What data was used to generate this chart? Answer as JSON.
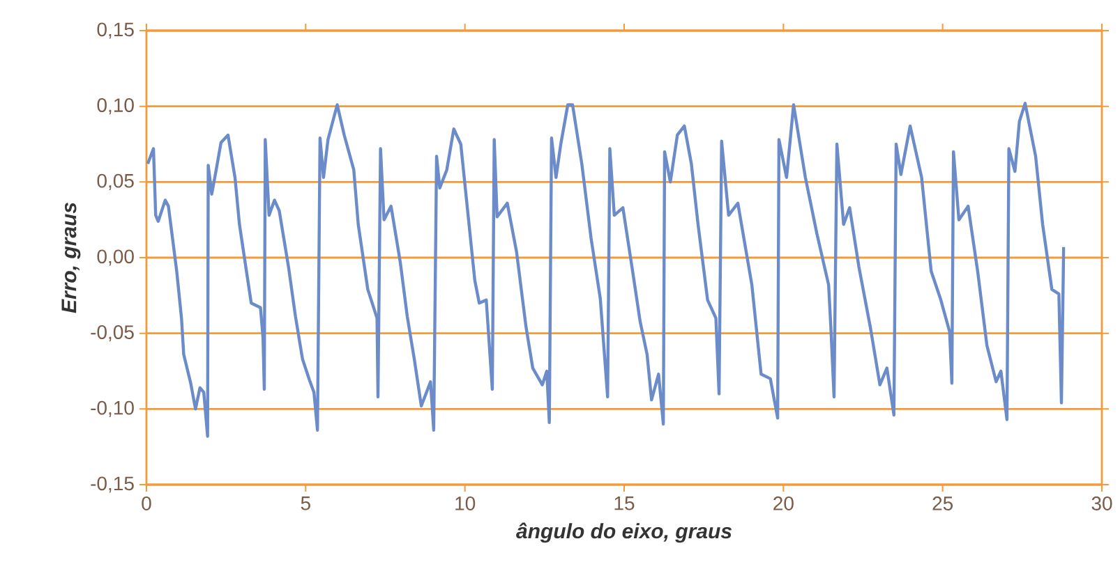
{
  "chart_data": {
    "type": "line",
    "xlabel": "ângulo do eixo, graus",
    "ylabel": "Erro, graus",
    "color": "#6b8cc9",
    "grid": "y",
    "marker": "none",
    "line_style": "solid",
    "xlim": [
      0,
      30
    ],
    "ylim": [
      -0.15,
      0.15
    ],
    "xticks": [
      0,
      5,
      10,
      15,
      20,
      25,
      30
    ],
    "yticks": [
      {
        "value": -0.15,
        "label": "-0,15"
      },
      {
        "value": -0.1,
        "label": "-0,10"
      },
      {
        "value": -0.05,
        "label": "-0,05"
      },
      {
        "value": 0,
        "label": "0,00"
      },
      {
        "value": 0.05,
        "label": "0,05"
      },
      {
        "value": 0.1,
        "label": "0,10"
      },
      {
        "value": 0.15,
        "label": "0,15"
      }
    ],
    "x": [
      0.04,
      0.22,
      0.29,
      0.37,
      0.59,
      0.69,
      0.95,
      1.1,
      1.17,
      1.39,
      1.54,
      1.68,
      1.8,
      1.92,
      1.94,
      2.05,
      2.19,
      2.34,
      2.56,
      2.78,
      2.92,
      3.14,
      3.29,
      3.58,
      3.66,
      3.7,
      3.73,
      3.85,
      4.02,
      4.17,
      4.46,
      4.68,
      4.9,
      5.12,
      5.26,
      5.37,
      5.45,
      5.56,
      5.7,
      5.99,
      6.21,
      6.51,
      6.65,
      6.95,
      7.24,
      7.27,
      7.35,
      7.46,
      7.68,
      7.97,
      8.19,
      8.41,
      8.63,
      8.92,
      9.02,
      9.11,
      9.21,
      9.43,
      9.65,
      9.87,
      10.31,
      10.45,
      10.67,
      10.86,
      10.92,
      11.01,
      11.33,
      11.62,
      11.92,
      12.13,
      12.43,
      12.57,
      12.65,
      12.72,
      12.86,
      13.01,
      13.23,
      13.38,
      13.67,
      13.96,
      14.25,
      14.48,
      14.55,
      14.69,
      14.96,
      15.28,
      15.5,
      15.72,
      15.86,
      16.08,
      16.23,
      16.27,
      16.45,
      16.67,
      16.89,
      17.11,
      17.32,
      17.62,
      17.88,
      17.98,
      18.06,
      18.28,
      18.57,
      19.01,
      19.3,
      19.59,
      19.82,
      19.86,
      20.1,
      20.32,
      20.69,
      21.05,
      21.42,
      21.49,
      21.59,
      21.68,
      21.89,
      22.08,
      22.37,
      22.73,
      23.03,
      23.25,
      23.47,
      23.54,
      23.69,
      23.98,
      24.34,
      24.64,
      24.93,
      25.22,
      25.29,
      25.34,
      25.51,
      25.8,
      26.1,
      26.39,
      26.68,
      26.83,
      27.02,
      27.08,
      27.27,
      27.41,
      27.59,
      27.92,
      28.14,
      28.43,
      28.65,
      28.73,
      28.8
    ],
    "values": [
      0.062,
      0.072,
      0.028,
      0.024,
      0.038,
      0.034,
      -0.009,
      -0.04,
      -0.064,
      -0.083,
      -0.1,
      -0.086,
      -0.089,
      -0.118,
      0.061,
      0.042,
      0.058,
      0.076,
      0.081,
      0.053,
      0.022,
      -0.009,
      -0.03,
      -0.033,
      -0.053,
      -0.087,
      0.078,
      0.028,
      0.038,
      0.031,
      -0.006,
      -0.039,
      -0.067,
      -0.081,
      -0.089,
      -0.114,
      0.079,
      0.053,
      0.078,
      0.101,
      0.081,
      0.058,
      0.022,
      -0.021,
      -0.04,
      -0.092,
      0.072,
      0.025,
      0.034,
      -0.003,
      -0.039,
      -0.067,
      -0.098,
      -0.082,
      -0.114,
      0.067,
      0.046,
      0.058,
      0.085,
      0.075,
      -0.015,
      -0.03,
      -0.028,
      -0.087,
      0.078,
      0.027,
      0.036,
      0.004,
      -0.046,
      -0.073,
      -0.084,
      -0.075,
      -0.109,
      0.079,
      0.053,
      0.075,
      0.101,
      0.101,
      0.062,
      0.013,
      -0.027,
      -0.092,
      0.072,
      0.028,
      0.033,
      -0.011,
      -0.042,
      -0.064,
      -0.094,
      -0.077,
      -0.11,
      0.07,
      0.05,
      0.081,
      0.087,
      0.062,
      0.022,
      -0.028,
      -0.04,
      -0.09,
      0.077,
      0.028,
      0.036,
      -0.018,
      -0.077,
      -0.08,
      -0.106,
      0.078,
      0.053,
      0.101,
      0.053,
      0.016,
      -0.018,
      -0.046,
      -0.092,
      0.075,
      0.022,
      0.033,
      -0.006,
      -0.046,
      -0.084,
      -0.073,
      -0.104,
      0.075,
      0.055,
      0.087,
      0.053,
      -0.009,
      -0.027,
      -0.049,
      -0.083,
      0.07,
      0.025,
      0.034,
      -0.009,
      -0.058,
      -0.082,
      -0.075,
      -0.107,
      0.072,
      0.057,
      0.09,
      0.102,
      0.067,
      0.022,
      -0.021,
      -0.024,
      -0.096,
      0.007
    ]
  }
}
